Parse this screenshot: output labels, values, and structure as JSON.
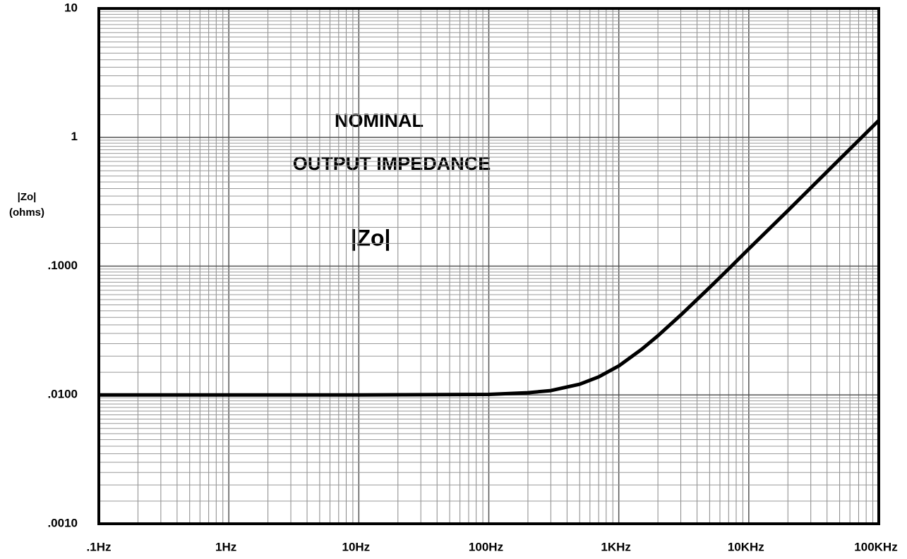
{
  "chart_data": {
    "type": "line",
    "annotations": [
      "NOMINAL",
      "OUTPUT IMPEDANCE",
      "|Zo|"
    ],
    "ylabel": [
      "|Zo|",
      "(ohms)"
    ],
    "log_x": true,
    "log_y": true,
    "grid": true,
    "minor_grid": true,
    "color": "#000000",
    "x": [
      0.1,
      1,
      10,
      100,
      200,
      300,
      500,
      700,
      1000,
      1500,
      2000,
      3000,
      5000,
      7000,
      10000,
      20000,
      50000,
      100000
    ],
    "values": [
      0.01,
      0.01,
      0.01,
      0.0101,
      0.0104,
      0.0108,
      0.0121,
      0.0138,
      0.0168,
      0.0226,
      0.0288,
      0.0417,
      0.0683,
      0.0951,
      0.136,
      0.27,
      0.676,
      1.35
    ],
    "xlim": [
      0.1,
      100000
    ],
    "ylim": [
      0.001,
      10
    ],
    "xticks": [
      {
        "value": 0.1,
        "label": ".1Hz"
      },
      {
        "value": 1,
        "label": "1Hz"
      },
      {
        "value": 10,
        "label": "10Hz"
      },
      {
        "value": 100,
        "label": "100Hz"
      },
      {
        "value": 1000,
        "label": "1KHz"
      },
      {
        "value": 10000,
        "label": "10KHz"
      },
      {
        "value": 100000,
        "label": "100KHz"
      }
    ],
    "yticks": [
      {
        "value": 0.001,
        "label": ".0010"
      },
      {
        "value": 0.01,
        "label": ".0100"
      },
      {
        "value": 0.1,
        "label": ".1000"
      },
      1,
      10
    ]
  }
}
